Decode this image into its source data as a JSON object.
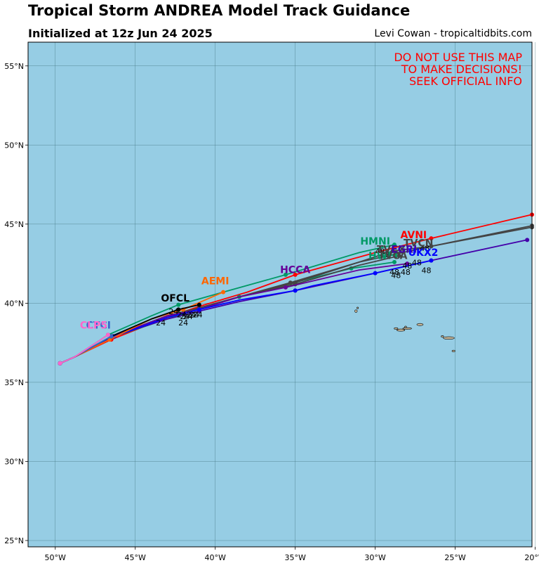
{
  "header": {
    "title": "Tropical Storm ANDREA Model Track Guidance",
    "initialized": "Initialized at 12z Jun 24 2025",
    "credit": "Levi Cowan - tropicaltidbits.com"
  },
  "warning": [
    "DO NOT USE THIS MAP",
    "TO MAKE DECISIONS!",
    "SEEK OFFICIAL INFO"
  ],
  "map": {
    "lon_range": [
      -51.7,
      -20.2
    ],
    "lat_range": [
      24.6,
      56.5
    ],
    "ocean_color": "#96cde4",
    "land_color": "#c8b89a",
    "grid_color": "#3c6e78",
    "lon_ticks": [
      {
        "value": -50,
        "label": "50°W"
      },
      {
        "value": -45,
        "label": "45°W"
      },
      {
        "value": -40,
        "label": "40°W"
      },
      {
        "value": -35,
        "label": "35°W"
      },
      {
        "value": -30,
        "label": "30°W"
      },
      {
        "value": -25,
        "label": "25°W"
      },
      {
        "value": -20,
        "label": "20°W"
      }
    ],
    "lat_ticks": [
      {
        "value": 25,
        "label": "25°N"
      },
      {
        "value": 30,
        "label": "30°N"
      },
      {
        "value": 35,
        "label": "35°N"
      },
      {
        "value": 40,
        "label": "40°N"
      },
      {
        "value": 45,
        "label": "45°N"
      },
      {
        "value": 50,
        "label": "50°N"
      },
      {
        "value": 55,
        "label": "55°N"
      }
    ],
    "islands": [
      {
        "lon": -31.2,
        "lat": 39.5,
        "rx": 0.08,
        "ry": 0.08
      },
      {
        "lon": -31.1,
        "lat": 39.7,
        "rx": 0.05,
        "ry": 0.05
      },
      {
        "lon": -28.1,
        "lat": 38.5,
        "rx": 0.06,
        "ry": 0.05
      },
      {
        "lon": -28.7,
        "lat": 38.4,
        "rx": 0.12,
        "ry": 0.05
      },
      {
        "lon": -28.4,
        "lat": 38.3,
        "rx": 0.25,
        "ry": 0.07
      },
      {
        "lon": -28.0,
        "lat": 38.4,
        "rx": 0.28,
        "ry": 0.04
      },
      {
        "lon": -27.2,
        "lat": 38.65,
        "rx": 0.2,
        "ry": 0.07
      },
      {
        "lon": -25.4,
        "lat": 37.8,
        "rx": 0.35,
        "ry": 0.08
      },
      {
        "lon": -25.8,
        "lat": 37.9,
        "rx": 0.08,
        "ry": 0.05
      },
      {
        "lon": -25.1,
        "lat": 36.98,
        "rx": 0.1,
        "ry": 0.05
      }
    ]
  },
  "models": [
    {
      "name": "AVNI",
      "color": "#ff0000",
      "track": [
        [
          -49.7,
          36.2
        ],
        [
          -48.8,
          36.6
        ],
        [
          -46.5,
          37.7
        ],
        [
          -43,
          39.1
        ],
        [
          -41,
          39.8
        ],
        [
          -38,
          40.7
        ],
        [
          -35,
          41.8
        ],
        [
          -30,
          43.2
        ],
        [
          -26.5,
          44.1
        ],
        [
          -20.2,
          45.6
        ]
      ],
      "label_pos": [
        -27.6,
        44.1
      ]
    },
    {
      "name": "HMNI",
      "color": "#009966",
      "track": [
        [
          -49.7,
          36.2
        ],
        [
          -48.8,
          36.6
        ],
        [
          -46.7,
          38.0
        ],
        [
          -44,
          39.2
        ],
        [
          -42.3,
          39.9
        ],
        [
          -39.5,
          40.7
        ],
        [
          -35.6,
          41.8
        ],
        [
          -31,
          43.2
        ],
        [
          -28.8,
          43.7
        ]
      ],
      "label_pos": [
        -30.0,
        43.7
      ]
    },
    {
      "name": "HWFI",
      "color": "#009966",
      "track": [
        [
          -49.7,
          36.2
        ],
        [
          -48.8,
          36.6
        ],
        [
          -46.3,
          37.9
        ],
        [
          -41.5,
          39.5
        ],
        [
          -38.5,
          40.4
        ],
        [
          -35.5,
          41.2
        ],
        [
          -31.5,
          42.2
        ],
        [
          -28.8,
          42.6
        ]
      ],
      "label_pos": [
        -29.5,
        42.8
      ]
    },
    {
      "name": "TVCN",
      "color": "#444444",
      "track": [
        [
          -49.7,
          36.2
        ],
        [
          -48.8,
          36.6
        ],
        [
          -46.4,
          37.9
        ],
        [
          -43,
          39.2
        ],
        [
          -41,
          39.7
        ],
        [
          -38.5,
          40.4
        ],
        [
          -35.3,
          41.3
        ],
        [
          -31,
          42.6
        ],
        [
          -26.5,
          43.6
        ],
        [
          -20.2,
          44.9
        ]
      ],
      "label_pos": [
        -27.3,
        43.6
      ]
    },
    {
      "name": "TVCX",
      "color": "#444444",
      "track": [
        [
          -49.7,
          36.2
        ],
        [
          -48.8,
          36.6
        ],
        [
          -46.4,
          37.9
        ],
        [
          -43,
          39.2
        ],
        [
          -41,
          39.7
        ],
        [
          -38.5,
          40.4
        ],
        [
          -35,
          41.3
        ],
        [
          -31,
          42.6
        ],
        [
          -28.9,
          43.3
        ],
        [
          -26.5,
          43.6
        ],
        [
          -20.2,
          44.8
        ]
      ],
      "label_pos": [
        -29.0,
        43.2
      ]
    },
    {
      "name": "TVCA",
      "color": "#444444",
      "track": [
        [
          -49.7,
          36.2
        ],
        [
          -48.8,
          36.6
        ],
        [
          -46.4,
          37.9
        ],
        [
          -43,
          39.2
        ],
        [
          -41,
          39.7
        ],
        [
          -38.5,
          40.4
        ],
        [
          -35,
          41.2
        ],
        [
          -31,
          42.4
        ],
        [
          -28.5,
          43.0
        ]
      ],
      "label_pos": [
        -28.9,
        42.8
      ]
    },
    {
      "name": "HCCA",
      "color": "#660099",
      "track": [
        [
          -49.7,
          36.2
        ],
        [
          -48.8,
          36.6
        ],
        [
          -46.4,
          37.9
        ],
        [
          -43,
          39.2
        ],
        [
          -41,
          39.6
        ],
        [
          -38.5,
          40.4
        ],
        [
          -35.6,
          41.0
        ],
        [
          -31,
          42.1
        ],
        [
          -28,
          42.5
        ]
      ],
      "label_pos": [
        -35.0,
        41.9
      ]
    },
    {
      "name": "EGRI",
      "color": "#4400aa",
      "track": [
        [
          -49.7,
          36.2
        ],
        [
          -48.8,
          36.6
        ],
        [
          -46.4,
          37.9
        ],
        [
          -43,
          39.0
        ],
        [
          -41,
          39.5
        ],
        [
          -38.5,
          40.1
        ],
        [
          -35,
          40.8
        ],
        [
          -30,
          41.9
        ],
        [
          -26.5,
          42.7
        ],
        [
          -20.5,
          44.0
        ]
      ],
      "label_pos": [
        -28.2,
        43.2
      ]
    },
    {
      "name": "UKX2",
      "color": "#0000ff",
      "track": [
        [
          -49.7,
          36.2
        ],
        [
          -48.8,
          36.6
        ],
        [
          -46.3,
          37.9
        ],
        [
          -43,
          39.1
        ],
        [
          -41,
          39.6
        ],
        [
          -38.5,
          40.2
        ],
        [
          -35,
          40.8
        ],
        [
          -33.9,
          41.1
        ],
        [
          -30,
          41.9
        ],
        [
          -26.5,
          42.7
        ]
      ],
      "label_pos": [
        -27.0,
        43.0
      ]
    },
    {
      "name": "AEMI",
      "color": "#ff6600",
      "track": [
        [
          -49.7,
          36.2
        ],
        [
          -48.8,
          36.6
        ],
        [
          -46.6,
          37.7
        ],
        [
          -44,
          39.0
        ],
        [
          -42,
          39.6
        ],
        [
          -39.5,
          40.7
        ]
      ],
      "label_pos": [
        -40.0,
        41.2
      ]
    },
    {
      "name": "OFCL",
      "color": "#000000",
      "track": [
        [
          -49.7,
          36.2
        ],
        [
          -48.8,
          36.6
        ],
        [
          -46.5,
          37.9
        ],
        [
          -44,
          39.0
        ],
        [
          -42.3,
          39.6
        ],
        [
          -41,
          39.9
        ]
      ],
      "label_pos": [
        -42.5,
        40.1
      ]
    },
    {
      "name": "CTCI",
      "color": "#3366cc",
      "track": [
        [
          -49.7,
          36.2
        ],
        [
          -48.8,
          36.6
        ],
        [
          -46.5,
          37.9
        ]
      ],
      "label_pos": [
        -47.3,
        38.4
      ]
    },
    {
      "name": "CLP5",
      "color": "#ff66cc",
      "track": [
        [
          -49.7,
          36.2
        ],
        [
          -48.8,
          36.6
        ],
        [
          -46.7,
          38.0
        ]
      ],
      "label_pos": [
        -47.6,
        38.4
      ]
    }
  ],
  "hour_labels": [
    {
      "text": "24",
      "lon": -42.6,
      "lat": 39.3
    },
    {
      "text": "24",
      "lon": -42.1,
      "lat": 39.1
    },
    {
      "text": "24",
      "lon": -41.9,
      "lat": 39.0
    },
    {
      "text": "24",
      "lon": -41.7,
      "lat": 39.0
    },
    {
      "text": "24",
      "lon": -41.5,
      "lat": 39.1
    },
    {
      "text": "24",
      "lon": -41.3,
      "lat": 39.1
    },
    {
      "text": "24",
      "lon": -41.1,
      "lat": 39.1
    },
    {
      "text": "24",
      "lon": -43.4,
      "lat": 38.6
    },
    {
      "text": "24",
      "lon": -42.0,
      "lat": 38.6
    },
    {
      "text": "48",
      "lon": -29.7,
      "lat": 43.1
    },
    {
      "text": "48",
      "lon": -29.4,
      "lat": 42.9
    },
    {
      "text": "48",
      "lon": -28.0,
      "lat": 42.2
    },
    {
      "text": "48",
      "lon": -27.4,
      "lat": 42.4
    },
    {
      "text": "48",
      "lon": -26.9,
      "lat": 43.3
    },
    {
      "text": "48",
      "lon": -28.8,
      "lat": 41.8
    },
    {
      "text": "48",
      "lon": -28.1,
      "lat": 41.8
    },
    {
      "text": "48",
      "lon": -28.7,
      "lat": 41.6
    },
    {
      "text": "48",
      "lon": -26.8,
      "lat": 41.9
    }
  ]
}
